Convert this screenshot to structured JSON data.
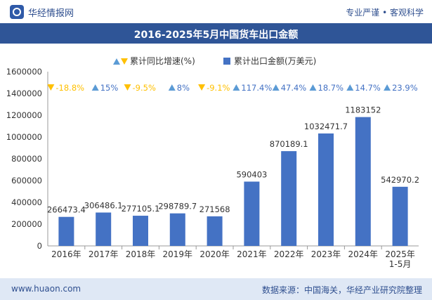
{
  "header": {
    "brand": "华经情报网",
    "tagline": "专业严谨 • 客观科学"
  },
  "chart_data": {
    "type": "bar",
    "title": "2016-2025年5月中国货车出口金额",
    "categories": [
      "2016年",
      "2017年",
      "2018年",
      "2019年",
      "2020年",
      "2021年",
      "2022年",
      "2023年",
      "2024年",
      "2025年\n1-5月"
    ],
    "series": [
      {
        "name": "累计出口金额(万美元)",
        "type": "bar",
        "values": [
          266473.4,
          306486.1,
          277105.1,
          298789.7,
          271568,
          590403,
          870189.1,
          1032471.7,
          1183152,
          542970.2
        ],
        "value_labels": [
          "266473.4",
          "306486.1",
          "277105.1",
          "298789.7",
          "271568",
          "590403",
          "870189.1",
          "1032471.7",
          "1183152",
          "542970.2"
        ]
      },
      {
        "name": "累计同比增速(%)",
        "type": "marker",
        "values": [
          -18.8,
          15,
          -9.5,
          8,
          -9.1,
          117.4,
          47.4,
          18.7,
          14.7,
          23.9
        ],
        "value_labels": [
          "-18.8%",
          "15%",
          "-9.5%",
          "8%",
          "-9.1%",
          "117.4%",
          "47.4%",
          "18.7%",
          "14.7%",
          "23.9%"
        ]
      }
    ],
    "yticks": [
      "0",
      "200000",
      "400000",
      "600000",
      "800000",
      "1000000",
      "1200000",
      "1400000",
      "1600000"
    ],
    "ylim": [
      0,
      1600000
    ],
    "grid": false,
    "legend": "top-center",
    "colors": {
      "bar": "#4472c4",
      "up_marker": "#5b9bd5",
      "down_marker": "#ffc000",
      "up_label": "#4472c4",
      "down_label": "#ffc000",
      "axis_text": "#333333"
    }
  },
  "footer": {
    "website": "www.huaon.com",
    "source": "数据来源：中国海关，华经产业研究院整理"
  }
}
